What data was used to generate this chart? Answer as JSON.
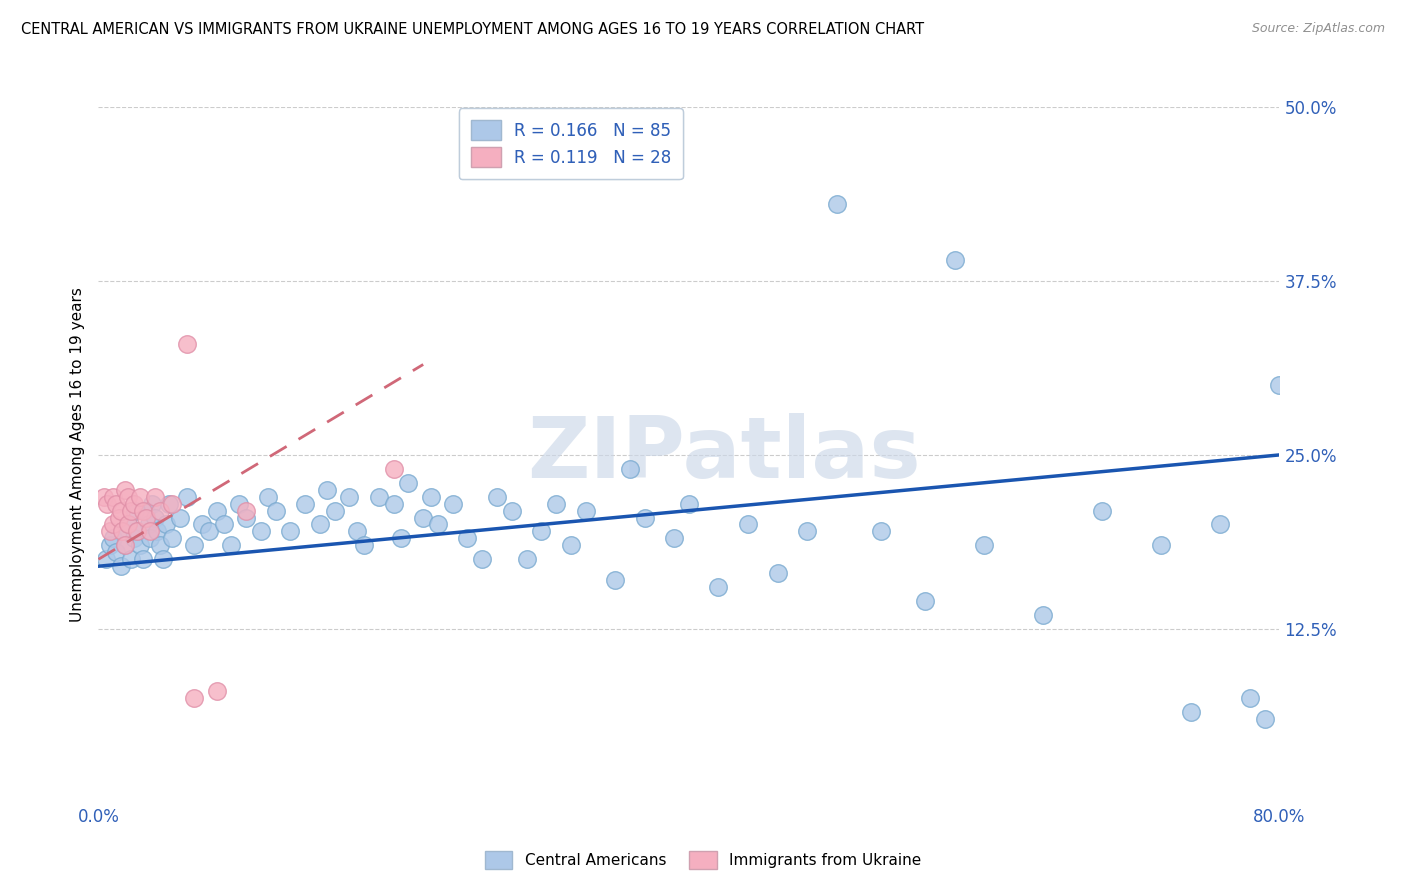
{
  "title": "CENTRAL AMERICAN VS IMMIGRANTS FROM UKRAINE UNEMPLOYMENT AMONG AGES 16 TO 19 YEARS CORRELATION CHART",
  "source": "Source: ZipAtlas.com",
  "ylabel": "Unemployment Among Ages 16 to 19 years",
  "xlim": [
    0.0,
    0.8
  ],
  "ylim": [
    0.0,
    0.5
  ],
  "xtick_positions": [
    0.0,
    0.1,
    0.2,
    0.3,
    0.4,
    0.5,
    0.6,
    0.7,
    0.8
  ],
  "ytick_positions": [
    0.0,
    0.125,
    0.25,
    0.375,
    0.5
  ],
  "ytick_labels_right": [
    "",
    "12.5%",
    "25.0%",
    "37.5%",
    "50.0%"
  ],
  "r_ca": 0.166,
  "n_ca": 85,
  "r_uk": 0.119,
  "n_uk": 28,
  "ca_fill": "#adc8e8",
  "ca_edge": "#7aaad0",
  "uk_fill": "#f5afc0",
  "uk_edge": "#e090a8",
  "ca_line_color": "#1a55b0",
  "uk_line_color": "#d06878",
  "text_color": "#3060b8",
  "grid_color": "#cccccc",
  "bg_color": "#ffffff",
  "watermark_color": "#ccd8e8",
  "ca_x": [
    0.005,
    0.008,
    0.01,
    0.012,
    0.015,
    0.016,
    0.018,
    0.02,
    0.022,
    0.024,
    0.025,
    0.026,
    0.028,
    0.03,
    0.032,
    0.034,
    0.035,
    0.036,
    0.038,
    0.04,
    0.042,
    0.044,
    0.046,
    0.048,
    0.05,
    0.055,
    0.06,
    0.065,
    0.07,
    0.075,
    0.08,
    0.085,
    0.09,
    0.095,
    0.1,
    0.11,
    0.115,
    0.12,
    0.13,
    0.14,
    0.15,
    0.155,
    0.16,
    0.17,
    0.175,
    0.18,
    0.19,
    0.2,
    0.205,
    0.21,
    0.22,
    0.225,
    0.23,
    0.24,
    0.25,
    0.26,
    0.27,
    0.28,
    0.29,
    0.3,
    0.31,
    0.32,
    0.33,
    0.35,
    0.36,
    0.37,
    0.39,
    0.4,
    0.42,
    0.44,
    0.46,
    0.48,
    0.5,
    0.53,
    0.56,
    0.58,
    0.6,
    0.64,
    0.68,
    0.72,
    0.74,
    0.76,
    0.78,
    0.79,
    0.8
  ],
  "ca_y": [
    0.175,
    0.185,
    0.19,
    0.18,
    0.17,
    0.195,
    0.185,
    0.2,
    0.175,
    0.19,
    0.21,
    0.195,
    0.185,
    0.175,
    0.21,
    0.2,
    0.19,
    0.215,
    0.205,
    0.195,
    0.185,
    0.175,
    0.2,
    0.215,
    0.19,
    0.205,
    0.22,
    0.185,
    0.2,
    0.195,
    0.21,
    0.2,
    0.185,
    0.215,
    0.205,
    0.195,
    0.22,
    0.21,
    0.195,
    0.215,
    0.2,
    0.225,
    0.21,
    0.22,
    0.195,
    0.185,
    0.22,
    0.215,
    0.19,
    0.23,
    0.205,
    0.22,
    0.2,
    0.215,
    0.19,
    0.175,
    0.22,
    0.21,
    0.175,
    0.195,
    0.215,
    0.185,
    0.21,
    0.16,
    0.24,
    0.205,
    0.19,
    0.215,
    0.155,
    0.2,
    0.165,
    0.195,
    0.43,
    0.195,
    0.145,
    0.39,
    0.185,
    0.135,
    0.21,
    0.185,
    0.065,
    0.2,
    0.075,
    0.06,
    0.3
  ],
  "uk_x": [
    0.004,
    0.006,
    0.008,
    0.01,
    0.01,
    0.012,
    0.014,
    0.015,
    0.016,
    0.018,
    0.018,
    0.02,
    0.02,
    0.022,
    0.024,
    0.026,
    0.028,
    0.03,
    0.032,
    0.035,
    0.038,
    0.042,
    0.05,
    0.06,
    0.065,
    0.08,
    0.1,
    0.2
  ],
  "uk_y": [
    0.22,
    0.215,
    0.195,
    0.22,
    0.2,
    0.215,
    0.205,
    0.21,
    0.195,
    0.225,
    0.185,
    0.22,
    0.2,
    0.21,
    0.215,
    0.195,
    0.22,
    0.21,
    0.205,
    0.195,
    0.22,
    0.21,
    0.215,
    0.33,
    0.075,
    0.08,
    0.21,
    0.24
  ],
  "bottom_legend_labels": [
    "Central Americans",
    "Immigrants from Ukraine"
  ]
}
